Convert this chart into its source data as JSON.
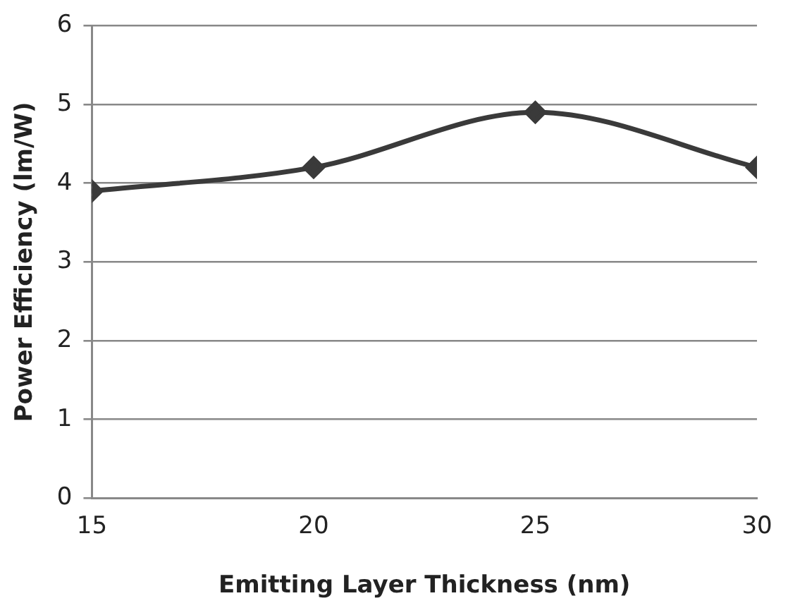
{
  "chart_data": {
    "type": "line",
    "xlabel": "Emitting Layer Thickness (nm)",
    "ylabel": "Power Efficiency (lm/W)",
    "x": [
      15,
      20,
      25,
      30
    ],
    "series": [
      {
        "color": "#3a3a3a",
        "values": [
          3.9,
          4.2,
          4.9,
          4.2
        ]
      }
    ],
    "xlim": [
      15,
      30
    ],
    "xticks": [
      15,
      20,
      25,
      30
    ],
    "ylim": [
      0,
      6
    ],
    "yticks": [
      0,
      1,
      2,
      3,
      4,
      5,
      6
    ],
    "grid": "y",
    "legend": false,
    "marker": "diamond",
    "line_style": "solid"
  }
}
